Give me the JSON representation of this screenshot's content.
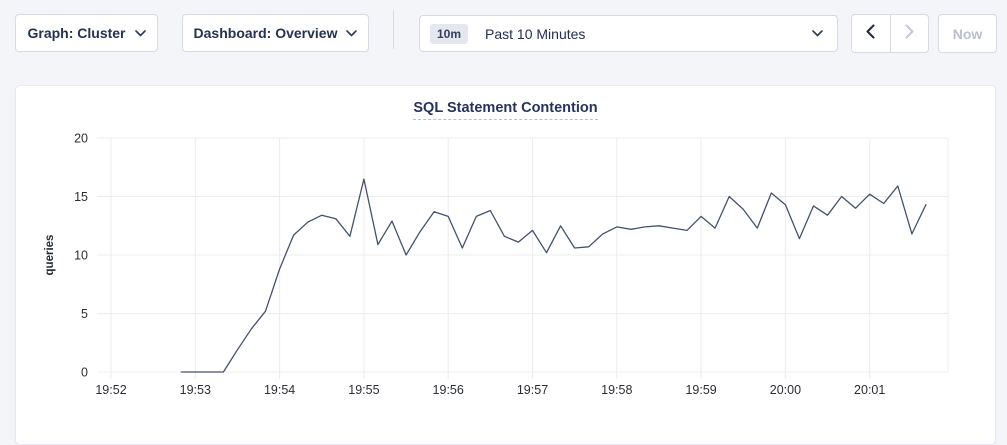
{
  "toolbar": {
    "graph_dropdown_label": "Graph: Cluster",
    "dashboard_dropdown_label": "Dashboard: Overview",
    "time_range_badge": "10m",
    "time_range_label": "Past 10 Minutes",
    "now_button_label": "Now"
  },
  "chart": {
    "colors": {
      "line": "#44526d",
      "grid": "#ececee",
      "tick_text": "#2a2e35",
      "axis_label": "#242a35"
    }
  },
  "chart_data": {
    "type": "line",
    "title": "SQL Statement Contention",
    "xlabel": "",
    "ylabel": "queries",
    "ylim": [
      0,
      20
    ],
    "yticks": [
      0,
      5,
      10,
      15,
      20
    ],
    "xticks": [
      "19:52",
      "19:53",
      "19:54",
      "19:55",
      "19:56",
      "19:57",
      "19:58",
      "19:59",
      "20:00",
      "20:01"
    ],
    "grid": true,
    "legend_position": "none",
    "x": [
      "19:52:50",
      "19:53:00",
      "19:53:10",
      "19:53:20",
      "19:53:30",
      "19:53:40",
      "19:53:50",
      "19:54:00",
      "19:54:10",
      "19:54:20",
      "19:54:30",
      "19:54:40",
      "19:54:50",
      "19:55:00",
      "19:55:10",
      "19:55:20",
      "19:55:30",
      "19:55:40",
      "19:55:50",
      "19:56:00",
      "19:56:10",
      "19:56:20",
      "19:56:30",
      "19:56:40",
      "19:56:50",
      "19:57:00",
      "19:57:10",
      "19:57:20",
      "19:57:30",
      "19:57:40",
      "19:57:50",
      "19:58:00",
      "19:58:10",
      "19:58:20",
      "19:58:30",
      "19:58:40",
      "19:58:50",
      "19:59:00",
      "19:59:10",
      "19:59:20",
      "19:59:30",
      "19:59:40",
      "19:59:50",
      "20:00:00",
      "20:00:10",
      "20:00:20",
      "20:00:30",
      "20:00:40",
      "20:00:50",
      "20:01:00",
      "20:01:10",
      "20:01:20",
      "20:01:30",
      "20:01:40"
    ],
    "series": [
      {
        "name": "queries",
        "values": [
          0,
          0,
          0,
          0,
          1.9,
          3.7,
          5.2,
          8.8,
          11.7,
          12.8,
          13.4,
          13.1,
          11.6,
          16.5,
          10.9,
          12.9,
          10.0,
          12.0,
          13.7,
          13.3,
          10.6,
          13.3,
          13.8,
          11.6,
          11.1,
          12.1,
          10.2,
          12.5,
          10.6,
          10.7,
          11.8,
          12.4,
          12.2,
          12.4,
          12.5,
          12.3,
          12.1,
          13.3,
          12.3,
          15.0,
          13.9,
          12.3,
          15.3,
          14.3,
          11.4,
          14.2,
          13.4,
          15.0,
          14.0,
          15.2,
          14.4,
          15.9,
          11.8,
          14.3
        ]
      }
    ]
  }
}
